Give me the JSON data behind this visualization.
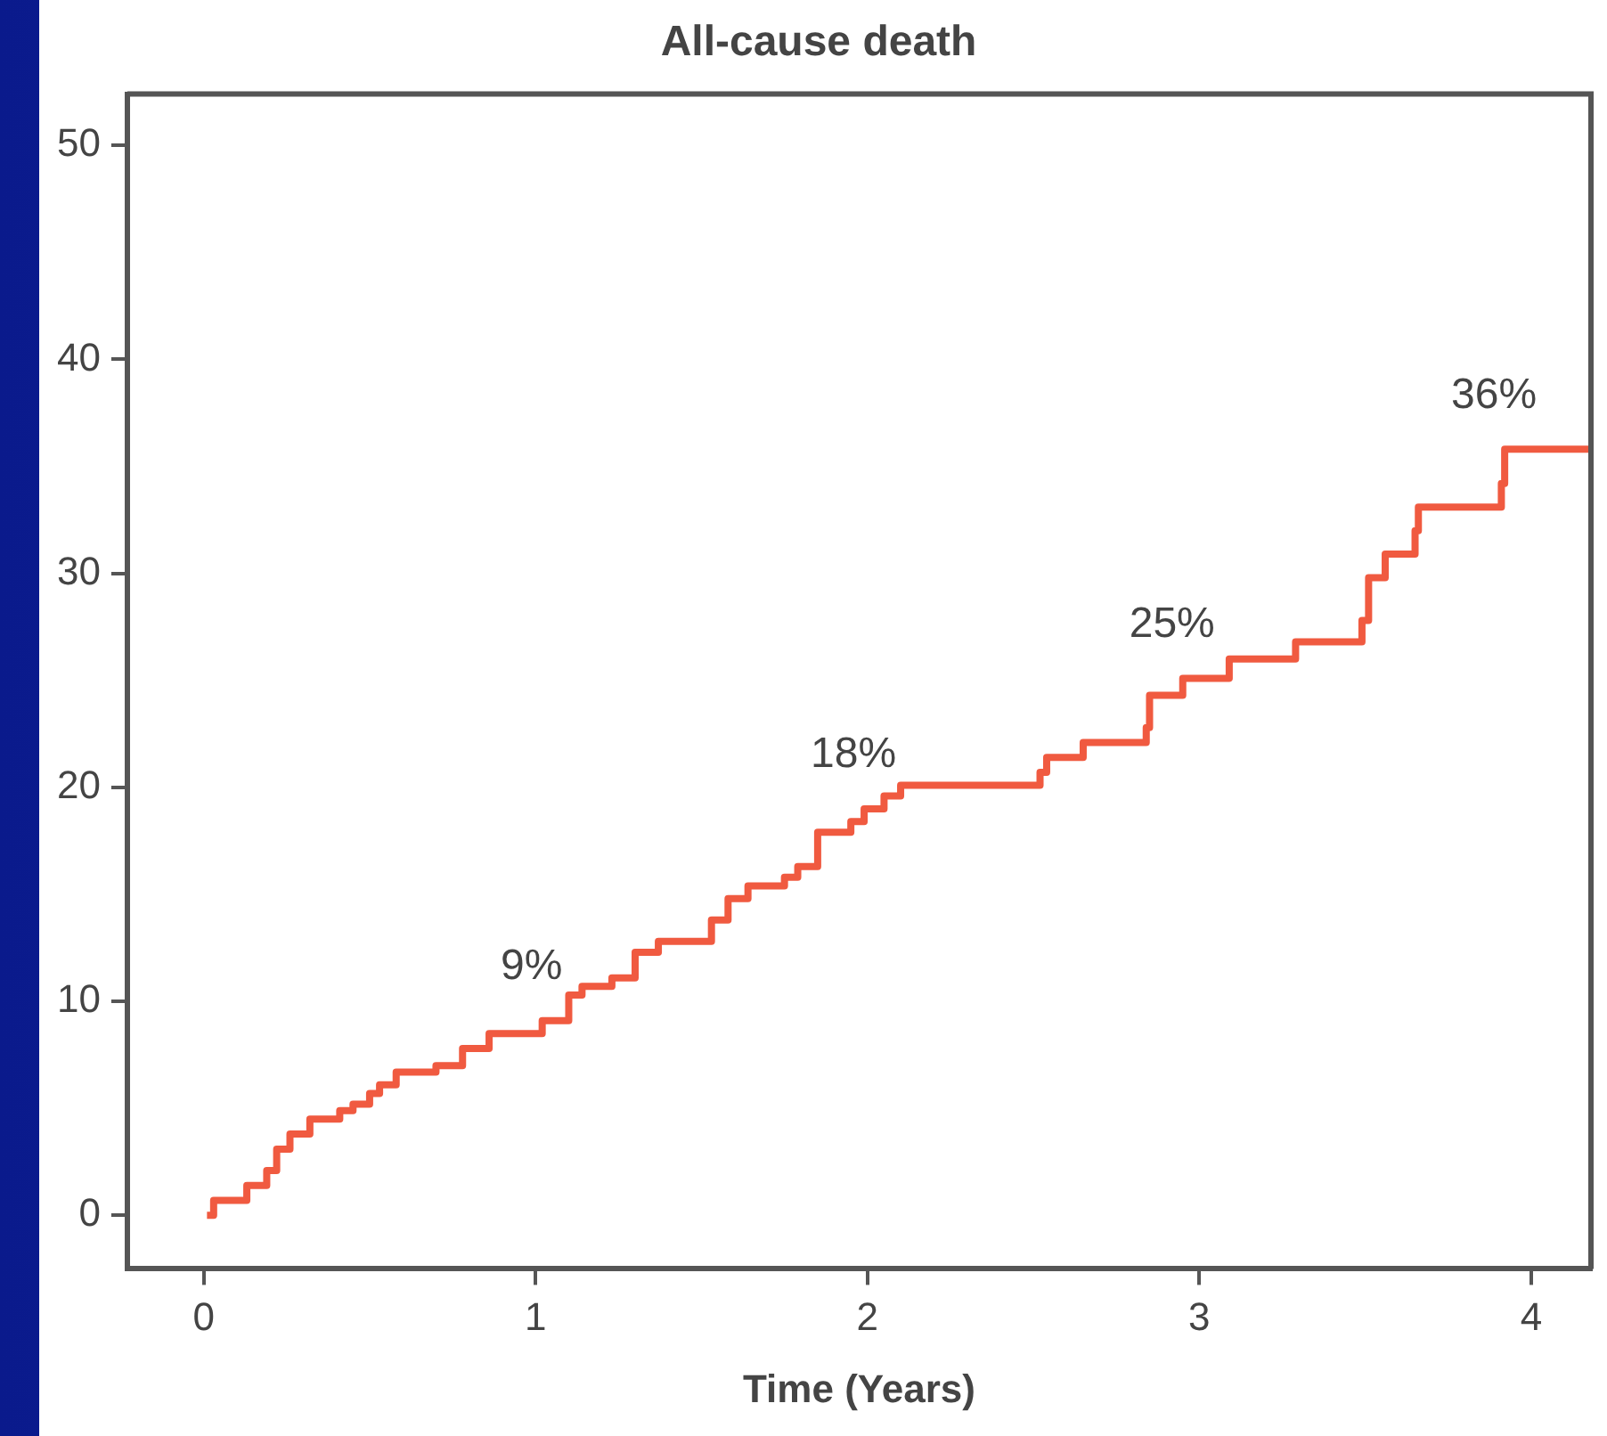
{
  "chart_data": {
    "type": "step",
    "title": "All-cause death",
    "xlabel": "Time (Years)",
    "xlim": [
      -0.23,
      4.18
    ],
    "ylim": [
      -2.5,
      52.4
    ],
    "xticks": [
      0,
      1,
      2,
      3,
      4
    ],
    "yticks": [
      0,
      10,
      20,
      30,
      40,
      50
    ],
    "grid": false,
    "legend": false,
    "marker": "none",
    "line_style": "solid",
    "series": [
      {
        "color": "#f05a40",
        "x": [
          0.01,
          0.03,
          0.13,
          0.19,
          0.22,
          0.26,
          0.32,
          0.41,
          0.45,
          0.5,
          0.53,
          0.58,
          0.7,
          0.78,
          0.86,
          1.02,
          1.1,
          1.14,
          1.23,
          1.3,
          1.37,
          1.53,
          1.58,
          1.64,
          1.75,
          1.79,
          1.85,
          1.95,
          1.99,
          2.05,
          2.1,
          2.52,
          2.54,
          2.65,
          2.84,
          2.85,
          2.95,
          3.09,
          3.29,
          3.49,
          3.51,
          3.56,
          3.65,
          3.66,
          3.91,
          3.92,
          4.18
        ],
        "values": [
          0,
          0.7,
          1.4,
          2.1,
          3.1,
          3.8,
          4.5,
          4.9,
          5.2,
          5.7,
          6.1,
          6.7,
          7.0,
          7.8,
          8.5,
          9.1,
          10.3,
          10.7,
          11.1,
          12.3,
          12.8,
          13.8,
          14.8,
          15.4,
          15.8,
          16.3,
          17.9,
          18.4,
          19.0,
          19.6,
          20.1,
          20.7,
          21.4,
          22.1,
          22.8,
          24.3,
          25.1,
          26.0,
          26.8,
          27.8,
          29.8,
          30.9,
          32.0,
          33.1,
          34.2,
          35.8,
          35.8
        ]
      }
    ],
    "annotations": [
      {
        "text": "9%",
        "x": 1.02,
        "y": 9.1
      },
      {
        "text": "18%",
        "x": 1.99,
        "y": 19.0
      },
      {
        "text": "25%",
        "x": 2.95,
        "y": 25.1
      },
      {
        "text": "36%",
        "x": 3.92,
        "y": 35.8
      }
    ]
  }
}
